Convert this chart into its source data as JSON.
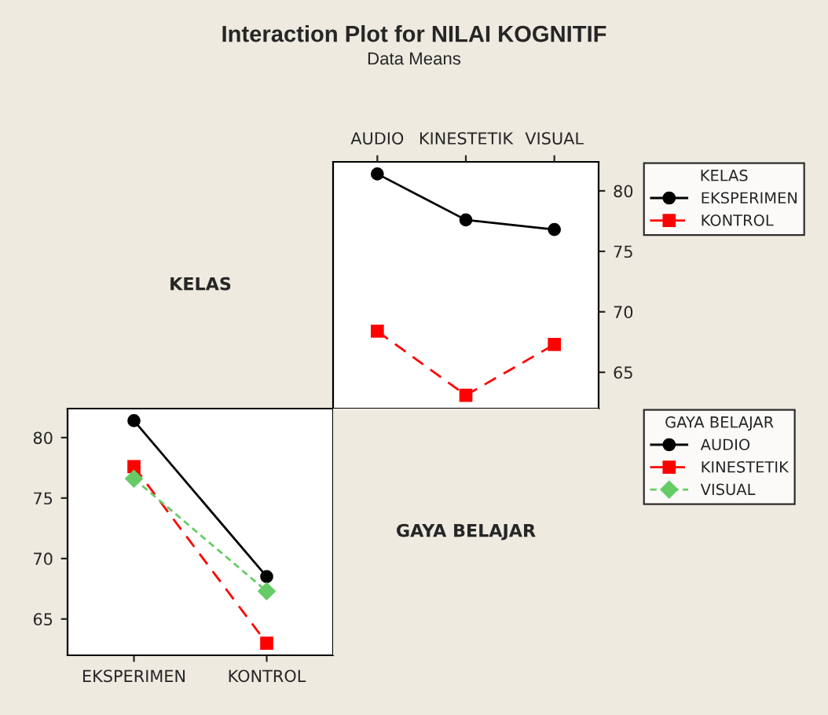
{
  "chart_data": [
    {
      "type": "other",
      "title": "Interaction Plot for NILAI KOGNITIF",
      "subtitle": "Data Means",
      "annotations": [
        "KELAS"
      ]
    },
    {
      "type": "line",
      "categories": [
        "AUDIO",
        "KINESTETIK",
        "VISUAL"
      ],
      "legend_title": "KELAS",
      "legend": "right",
      "ylim": [
        62,
        82.4
      ],
      "yticks": [
        65,
        70,
        75,
        80
      ],
      "grid": false,
      "series": [
        {
          "name": "EKSPERIMEN",
          "color": "#000000",
          "values": [
            81.4,
            77.6,
            76.8
          ],
          "marker": "circle",
          "line_style": "solid"
        },
        {
          "name": "KONTROL",
          "color": "#ff0000",
          "values": [
            68.4,
            63.1,
            67.3
          ],
          "marker": "square",
          "line_style": "dashed"
        }
      ]
    },
    {
      "type": "line",
      "categories": [
        "EKSPERIMEN",
        "KONTROL"
      ],
      "legend_title": "GAYA BELAJAR",
      "legend": "right",
      "ylim": [
        62,
        82.4
      ],
      "yticks": [
        65,
        70,
        75,
        80
      ],
      "grid": false,
      "series": [
        {
          "name": "AUDIO",
          "color": "#000000",
          "values": [
            81.4,
            68.5
          ],
          "marker": "circle",
          "line_style": "solid"
        },
        {
          "name": "KINESTETIK",
          "color": "#ff0000",
          "values": [
            77.6,
            63.0
          ],
          "marker": "square",
          "line_style": "dashed"
        },
        {
          "name": "VISUAL",
          "color": "#66cc66",
          "values": [
            76.6,
            67.3
          ],
          "marker": "diamond",
          "line_style": "dotted"
        }
      ]
    },
    {
      "type": "other",
      "annotations": [
        "GAYA BELAJAR"
      ]
    }
  ]
}
